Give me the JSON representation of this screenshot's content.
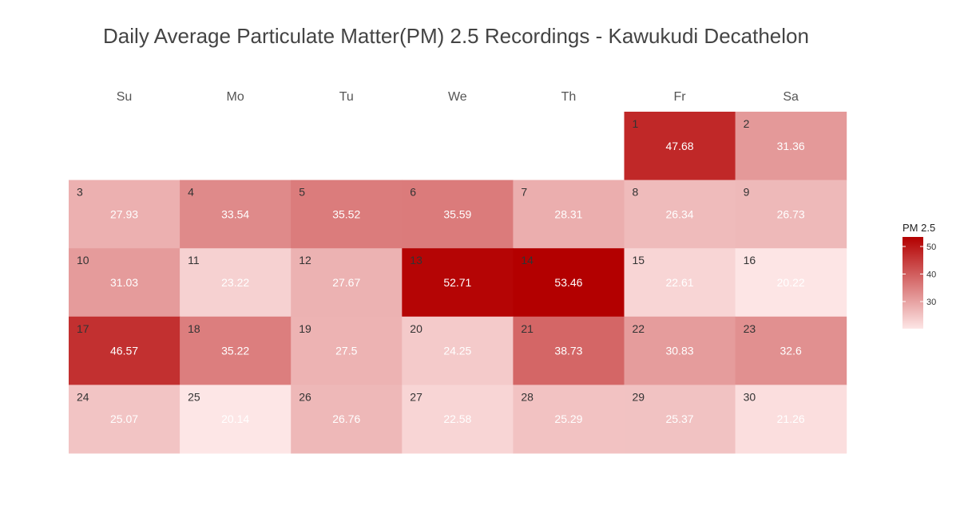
{
  "title": "Daily Average Particulate Matter(PM) 2.5 Recordings - Kawukudi Decathelon",
  "chart_data": {
    "type": "heatmap",
    "weekdays": [
      "Su",
      "Mo",
      "Tu",
      "We",
      "Th",
      "Fr",
      "Sa"
    ],
    "first_weekday_index": 5,
    "days": [
      1,
      2,
      3,
      4,
      5,
      6,
      7,
      8,
      9,
      10,
      11,
      12,
      13,
      14,
      15,
      16,
      17,
      18,
      19,
      20,
      21,
      22,
      23,
      24,
      25,
      26,
      27,
      28,
      29,
      30
    ],
    "values": [
      47.68,
      31.36,
      27.93,
      33.54,
      35.52,
      35.59,
      28.31,
      26.34,
      26.73,
      31.03,
      23.22,
      27.67,
      52.71,
      53.46,
      22.61,
      20.22,
      46.57,
      35.22,
      27.5,
      24.25,
      38.73,
      30.83,
      32.6,
      25.07,
      20.14,
      26.76,
      22.58,
      25.29,
      25.37,
      21.26
    ],
    "legend": {
      "title": "PM 2.5",
      "ticks": [
        30,
        40,
        50
      ],
      "range": [
        20.14,
        53.46
      ],
      "color_low": "#fde6e6",
      "color_high": "#b30000",
      "position": "right"
    }
  }
}
